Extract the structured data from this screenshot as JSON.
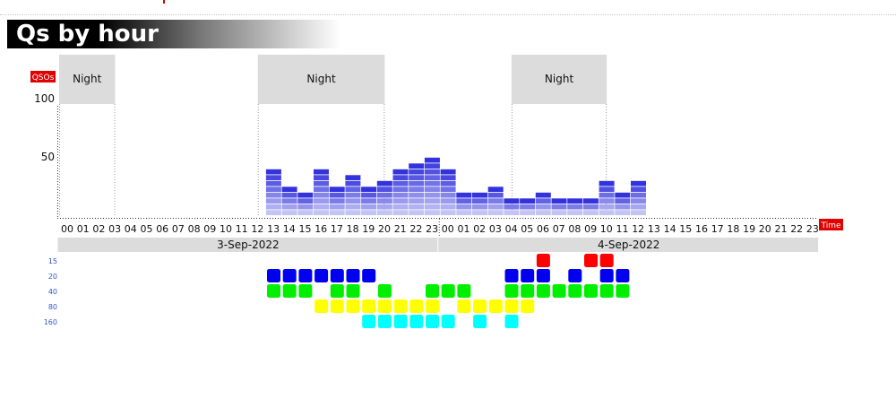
{
  "title": "Qs by hour",
  "y_axis_tag": "QSOs",
  "x_axis_tag": "Time",
  "night_label": "Night",
  "colors": {
    "bar_dark": "#3333dd",
    "bar_light": "#c4c4f4",
    "tag_bg": "#e00000",
    "night_bg": "#dcdcdc"
  },
  "chart_data": {
    "type": "bar",
    "title": "Qs by hour",
    "ylabel": "QSOs",
    "xlabel": "Time",
    "yticks": [
      50,
      100
    ],
    "ylim": [
      0,
      110
    ],
    "dates": [
      "3-Sep-2022",
      "4-Sep-2022"
    ],
    "categories": [
      "00",
      "01",
      "02",
      "03",
      "04",
      "05",
      "06",
      "07",
      "08",
      "09",
      "10",
      "11",
      "12",
      "13",
      "14",
      "15",
      "16",
      "17",
      "18",
      "19",
      "20",
      "21",
      "22",
      "23",
      "00",
      "01",
      "02",
      "03",
      "04",
      "05",
      "06",
      "07",
      "08",
      "09",
      "10",
      "11",
      "12",
      "13",
      "14",
      "15",
      "16",
      "17",
      "18",
      "19",
      "20",
      "21",
      "22",
      "23"
    ],
    "values": [
      0,
      0,
      0,
      0,
      0,
      0,
      0,
      0,
      0,
      0,
      0,
      0,
      0,
      40,
      25,
      20,
      40,
      25,
      35,
      25,
      30,
      40,
      45,
      50,
      40,
      20,
      20,
      25,
      15,
      15,
      20,
      15,
      15,
      15,
      30,
      20,
      30,
      0,
      0,
      0,
      0,
      0,
      0,
      0,
      0,
      0,
      0,
      0
    ],
    "night_periods": [
      [
        -1.0,
        3.5
      ],
      [
        12.5,
        20.5
      ],
      [
        28.5,
        34.5
      ]
    ],
    "band_chart": {
      "bands": [
        "15",
        "20",
        "40",
        "80",
        "160"
      ],
      "band_colors": [
        "#ff0000",
        "#0000ee",
        "#00ee00",
        "#ffff00",
        "#00ffff"
      ],
      "active_hours": [
        [
          30,
          33,
          34
        ],
        [
          13,
          14,
          15,
          16,
          17,
          18,
          19,
          28,
          29,
          30,
          32,
          34,
          35
        ],
        [
          13,
          14,
          15,
          17,
          18,
          20,
          23,
          24,
          25,
          28,
          29,
          30,
          31,
          32,
          33,
          34,
          35
        ],
        [
          16,
          17,
          18,
          19,
          20,
          21,
          22,
          23,
          25,
          26,
          27,
          28,
          29
        ],
        [
          19,
          20,
          21,
          22,
          23,
          24,
          26,
          28
        ]
      ]
    }
  }
}
